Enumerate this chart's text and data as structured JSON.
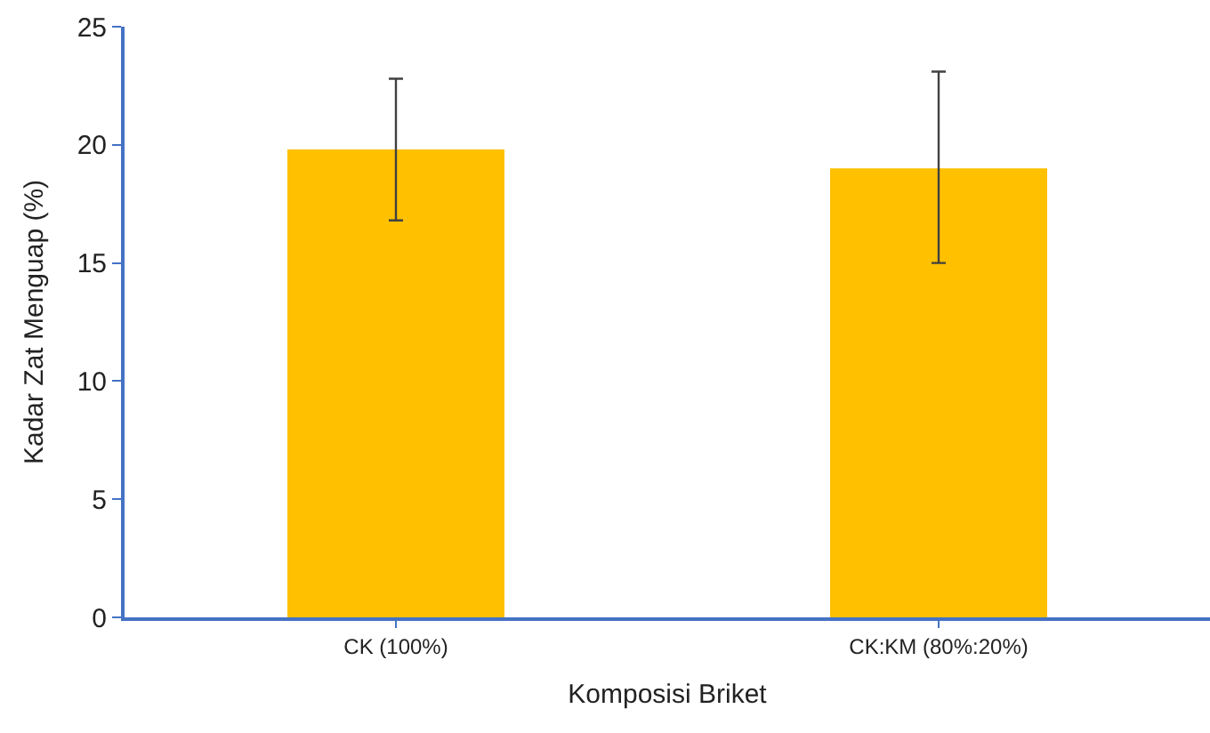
{
  "chart_data": {
    "type": "bar",
    "xlabel": "Komposisi Briket",
    "ylabel": "Kadar Zat Menguap (%)",
    "categories": [
      "CK (100%)",
      "CK:KM (80%:20%)"
    ],
    "values": [
      19.8,
      19.0
    ],
    "errors": [
      [
        16.8,
        22.8
      ],
      [
        15.0,
        23.1
      ]
    ],
    "color": "#ffc000",
    "ylim": [
      0,
      25
    ],
    "yticks": [
      0,
      5,
      10,
      15,
      20,
      25
    ]
  }
}
